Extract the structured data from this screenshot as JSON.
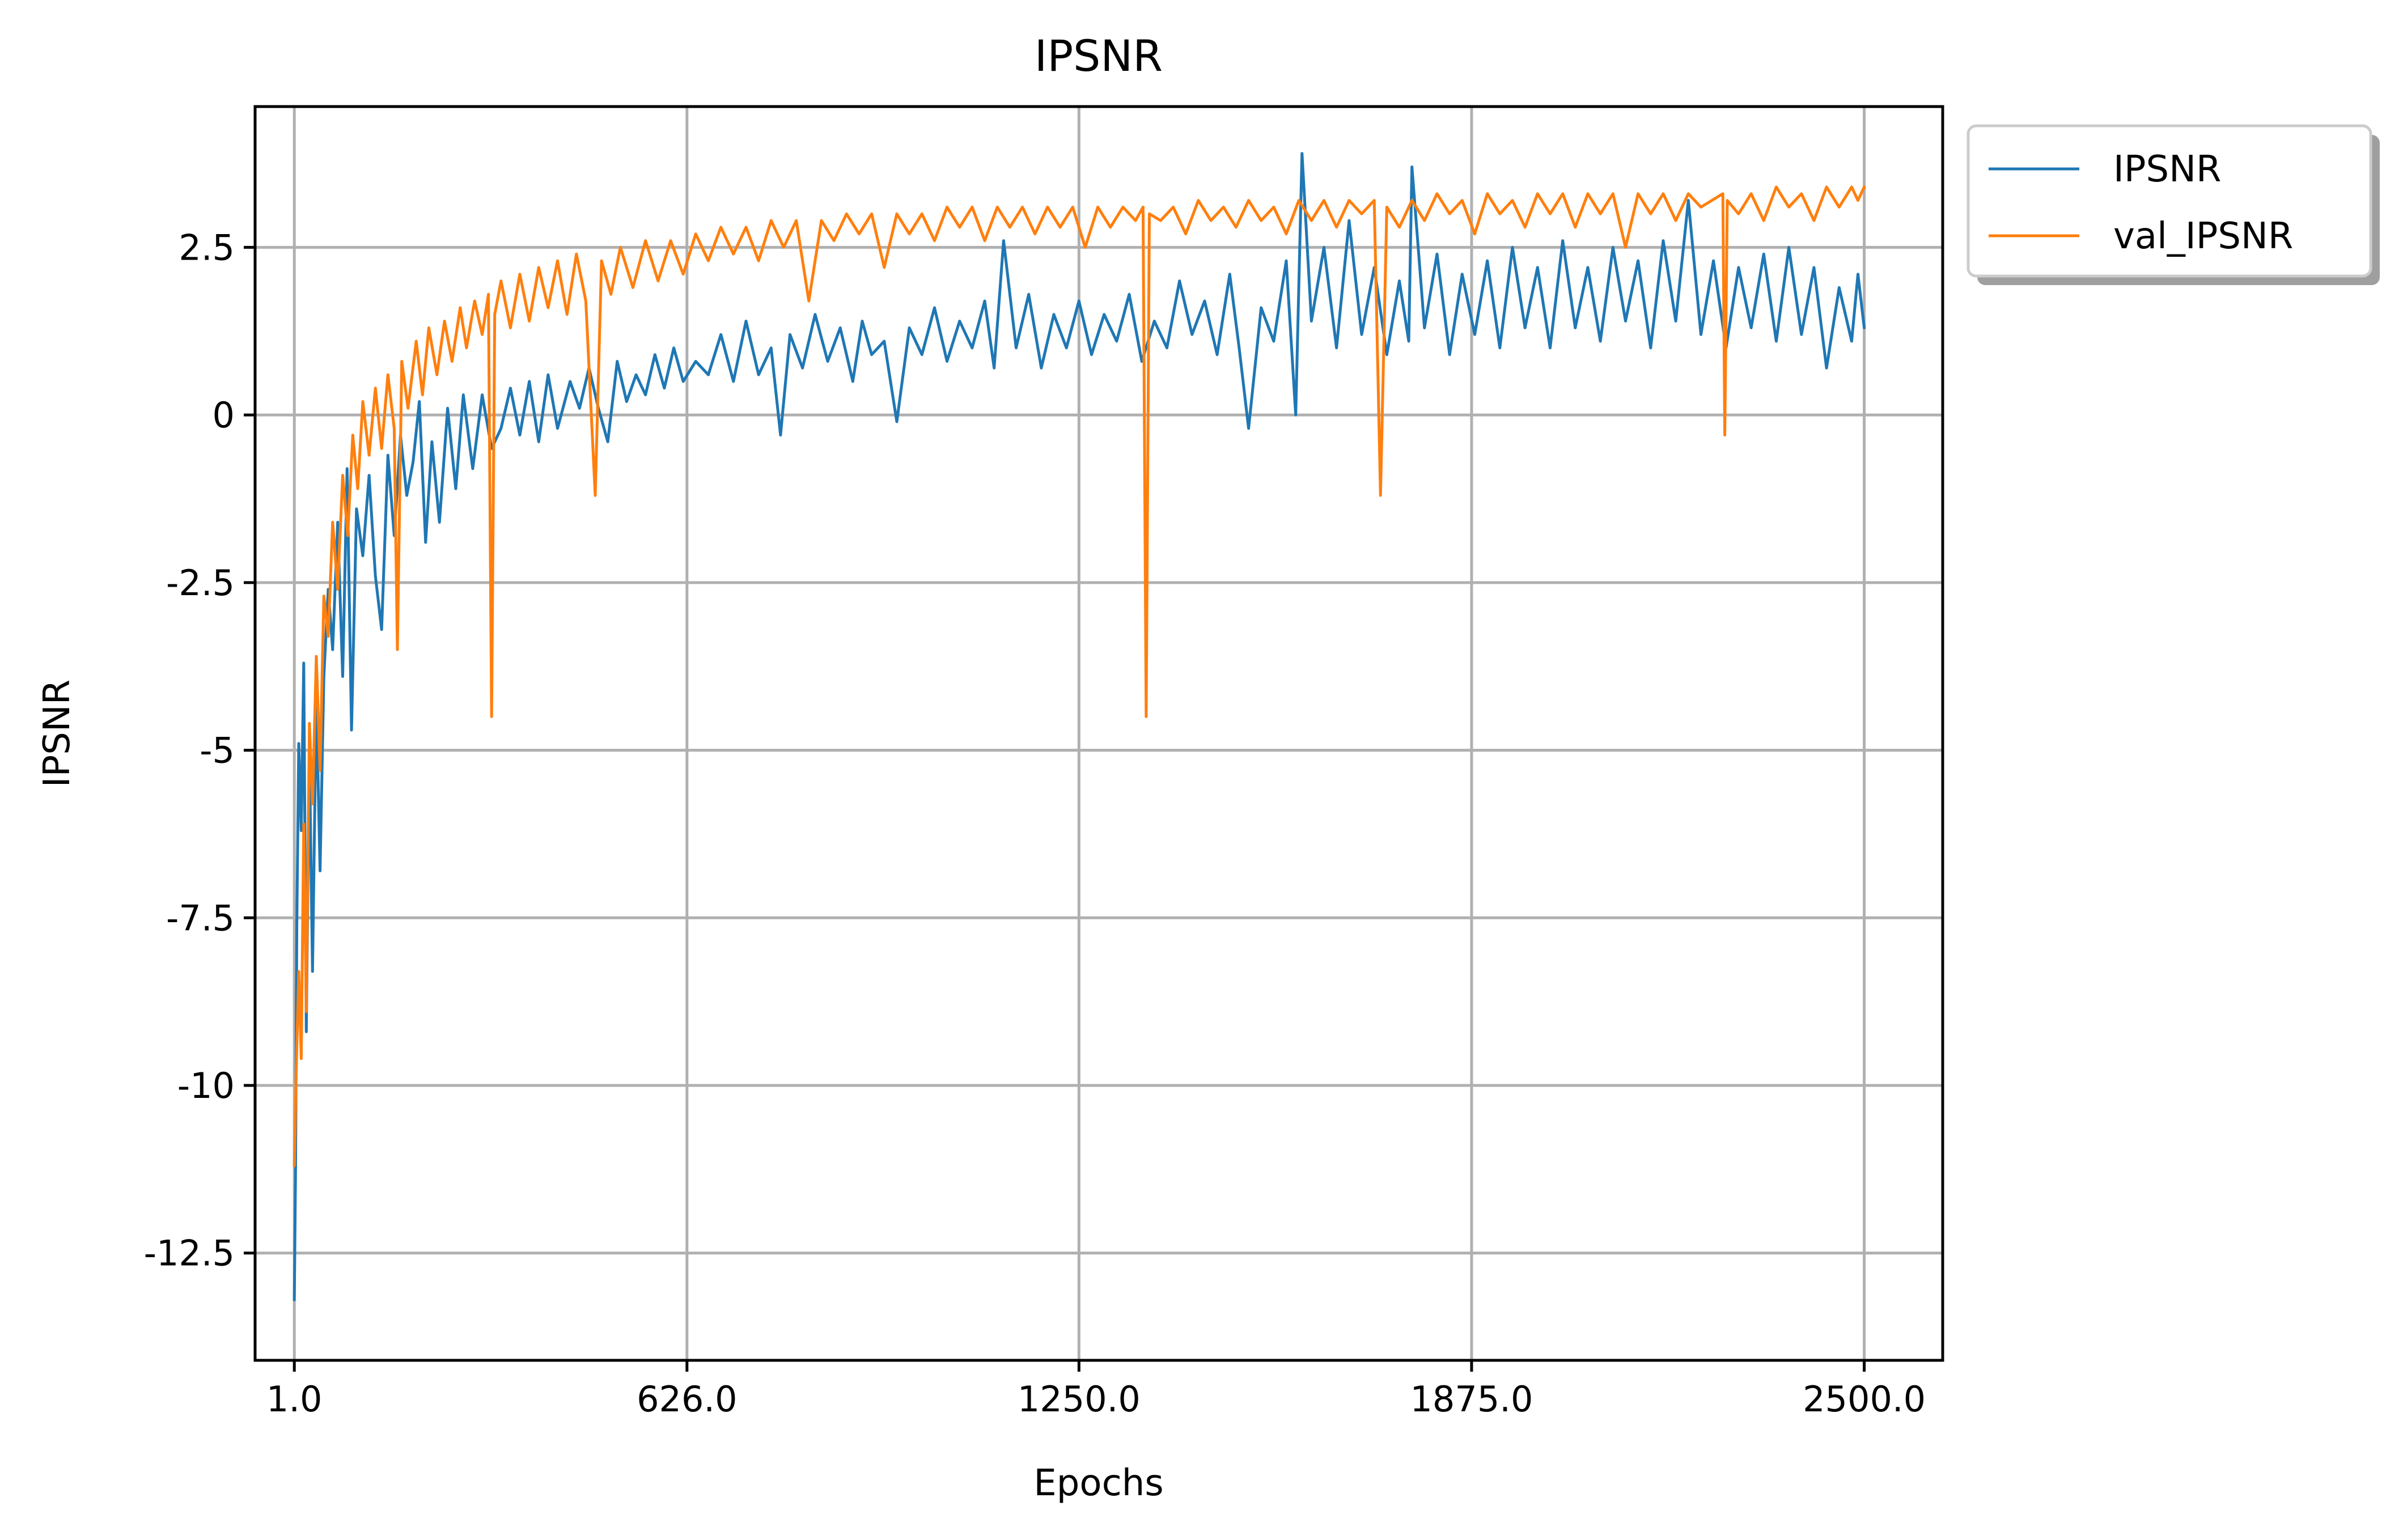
{
  "chart_data": {
    "type": "line",
    "title": "IPSNR",
    "xlabel": "Epochs",
    "ylabel": "IPSNR",
    "xlim": [
      -61.45,
      2624.9
    ],
    "ylim": [
      -14.1,
      4.6
    ],
    "grid": true,
    "legend_position": "outside-top-right",
    "x_ticks": [
      {
        "value": 1,
        "label": "1.0"
      },
      {
        "value": 626,
        "label": "626.0"
      },
      {
        "value": 1250,
        "label": "1250.0"
      },
      {
        "value": 1875,
        "label": "1875.0"
      },
      {
        "value": 2500,
        "label": "2500.0"
      }
    ],
    "y_ticks": [
      {
        "value": 2.5,
        "label": "2.5"
      },
      {
        "value": 0,
        "label": "0"
      },
      {
        "value": -2.5,
        "label": "-2.5"
      },
      {
        "value": -5,
        "label": "-5"
      },
      {
        "value": -7.5,
        "label": "-7.5"
      },
      {
        "value": -10,
        "label": "-10"
      },
      {
        "value": -12.5,
        "label": "-12.5"
      }
    ],
    "series": [
      {
        "name": "IPSNR",
        "color": "#1f77b4",
        "points": [
          [
            1,
            -13.2
          ],
          [
            3,
            -11.2
          ],
          [
            5,
            -7.6
          ],
          [
            8,
            -4.9
          ],
          [
            12,
            -6.2
          ],
          [
            16,
            -3.7
          ],
          [
            20,
            -9.2
          ],
          [
            25,
            -5.0
          ],
          [
            30,
            -8.3
          ],
          [
            36,
            -4.2
          ],
          [
            42,
            -6.8
          ],
          [
            48,
            -3.9
          ],
          [
            55,
            -2.6
          ],
          [
            62,
            -3.5
          ],
          [
            70,
            -1.6
          ],
          [
            78,
            -3.9
          ],
          [
            85,
            -0.8
          ],
          [
            92,
            -4.7
          ],
          [
            100,
            -1.4
          ],
          [
            110,
            -2.1
          ],
          [
            120,
            -0.9
          ],
          [
            130,
            -2.4
          ],
          [
            140,
            -3.2
          ],
          [
            150,
            -0.6
          ],
          [
            160,
            -1.8
          ],
          [
            170,
            -0.3
          ],
          [
            180,
            -1.2
          ],
          [
            190,
            -0.7
          ],
          [
            200,
            0.2
          ],
          [
            210,
            -1.9
          ],
          [
            220,
            -0.4
          ],
          [
            232,
            -1.6
          ],
          [
            245,
            0.1
          ],
          [
            258,
            -1.1
          ],
          [
            270,
            0.3
          ],
          [
            285,
            -0.8
          ],
          [
            300,
            0.3
          ],
          [
            315,
            -0.5
          ],
          [
            330,
            -0.2
          ],
          [
            345,
            0.4
          ],
          [
            360,
            -0.3
          ],
          [
            375,
            0.5
          ],
          [
            390,
            -0.4
          ],
          [
            405,
            0.6
          ],
          [
            420,
            -0.2
          ],
          [
            440,
            0.5
          ],
          [
            455,
            0.1
          ],
          [
            470,
            0.7
          ],
          [
            485,
            0.1
          ],
          [
            500,
            -0.4
          ],
          [
            515,
            0.8
          ],
          [
            530,
            0.2
          ],
          [
            545,
            0.6
          ],
          [
            560,
            0.3
          ],
          [
            575,
            0.9
          ],
          [
            590,
            0.4
          ],
          [
            605,
            1.0
          ],
          [
            620,
            0.5
          ],
          [
            640,
            0.8
          ],
          [
            660,
            0.6
          ],
          [
            680,
            1.2
          ],
          [
            700,
            0.5
          ],
          [
            720,
            1.4
          ],
          [
            740,
            0.6
          ],
          [
            760,
            1.0
          ],
          [
            775,
            -0.3
          ],
          [
            790,
            1.2
          ],
          [
            810,
            0.7
          ],
          [
            830,
            1.5
          ],
          [
            850,
            0.8
          ],
          [
            870,
            1.3
          ],
          [
            890,
            0.5
          ],
          [
            905,
            1.4
          ],
          [
            920,
            0.9
          ],
          [
            940,
            1.1
          ],
          [
            960,
            -0.1
          ],
          [
            980,
            1.3
          ],
          [
            1000,
            0.9
          ],
          [
            1020,
            1.6
          ],
          [
            1040,
            0.8
          ],
          [
            1060,
            1.4
          ],
          [
            1080,
            1.0
          ],
          [
            1100,
            1.7
          ],
          [
            1115,
            0.7
          ],
          [
            1130,
            2.6
          ],
          [
            1150,
            1.0
          ],
          [
            1170,
            1.8
          ],
          [
            1190,
            0.7
          ],
          [
            1210,
            1.5
          ],
          [
            1230,
            1.0
          ],
          [
            1250,
            1.7
          ],
          [
            1270,
            0.9
          ],
          [
            1290,
            1.5
          ],
          [
            1310,
            1.1
          ],
          [
            1330,
            1.8
          ],
          [
            1350,
            0.8
          ],
          [
            1370,
            1.4
          ],
          [
            1390,
            1.0
          ],
          [
            1410,
            2.0
          ],
          [
            1430,
            1.2
          ],
          [
            1450,
            1.7
          ],
          [
            1470,
            0.9
          ],
          [
            1490,
            2.1
          ],
          [
            1505,
            1.0
          ],
          [
            1520,
            -0.2
          ],
          [
            1540,
            1.6
          ],
          [
            1560,
            1.1
          ],
          [
            1580,
            2.3
          ],
          [
            1595,
            0.0
          ],
          [
            1605,
            3.9
          ],
          [
            1620,
            1.4
          ],
          [
            1640,
            2.5
          ],
          [
            1660,
            1.0
          ],
          [
            1680,
            2.9
          ],
          [
            1700,
            1.2
          ],
          [
            1720,
            2.2
          ],
          [
            1740,
            0.9
          ],
          [
            1760,
            2.0
          ],
          [
            1775,
            1.1
          ],
          [
            1780,
            3.7
          ],
          [
            1800,
            1.3
          ],
          [
            1820,
            2.4
          ],
          [
            1840,
            0.9
          ],
          [
            1860,
            2.1
          ],
          [
            1880,
            1.2
          ],
          [
            1900,
            2.3
          ],
          [
            1920,
            1.0
          ],
          [
            1940,
            2.5
          ],
          [
            1960,
            1.3
          ],
          [
            1980,
            2.2
          ],
          [
            2000,
            1.0
          ],
          [
            2020,
            2.6
          ],
          [
            2040,
            1.3
          ],
          [
            2060,
            2.2
          ],
          [
            2080,
            1.1
          ],
          [
            2100,
            2.5
          ],
          [
            2120,
            1.4
          ],
          [
            2140,
            2.3
          ],
          [
            2160,
            1.0
          ],
          [
            2180,
            2.6
          ],
          [
            2200,
            1.4
          ],
          [
            2220,
            3.2
          ],
          [
            2240,
            1.2
          ],
          [
            2260,
            2.3
          ],
          [
            2280,
            1.0
          ],
          [
            2300,
            2.2
          ],
          [
            2320,
            1.3
          ],
          [
            2340,
            2.4
          ],
          [
            2360,
            1.1
          ],
          [
            2380,
            2.5
          ],
          [
            2400,
            1.2
          ],
          [
            2420,
            2.2
          ],
          [
            2440,
            0.7
          ],
          [
            2460,
            1.9
          ],
          [
            2480,
            1.1
          ],
          [
            2490,
            2.1
          ],
          [
            2500,
            1.3
          ]
        ]
      },
      {
        "name": "val_IPSNR",
        "color": "#ff7f0e",
        "points": [
          [
            1,
            -11.2
          ],
          [
            4,
            -9.8
          ],
          [
            8,
            -8.3
          ],
          [
            12,
            -9.6
          ],
          [
            16,
            -6.1
          ],
          [
            20,
            -8.9
          ],
          [
            25,
            -4.6
          ],
          [
            30,
            -5.8
          ],
          [
            36,
            -3.6
          ],
          [
            42,
            -5.3
          ],
          [
            48,
            -2.7
          ],
          [
            55,
            -3.3
          ],
          [
            62,
            -1.6
          ],
          [
            70,
            -2.6
          ],
          [
            78,
            -0.9
          ],
          [
            86,
            -1.8
          ],
          [
            94,
            -0.3
          ],
          [
            102,
            -1.1
          ],
          [
            110,
            0.2
          ],
          [
            120,
            -0.6
          ],
          [
            130,
            0.4
          ],
          [
            140,
            -0.5
          ],
          [
            150,
            0.6
          ],
          [
            160,
            -0.2
          ],
          [
            165,
            -3.5
          ],
          [
            172,
            0.8
          ],
          [
            182,
            0.1
          ],
          [
            195,
            1.1
          ],
          [
            205,
            0.3
          ],
          [
            215,
            1.3
          ],
          [
            228,
            0.6
          ],
          [
            240,
            1.4
          ],
          [
            252,
            0.8
          ],
          [
            265,
            1.6
          ],
          [
            275,
            1.0
          ],
          [
            288,
            1.7
          ],
          [
            300,
            1.2
          ],
          [
            310,
            1.8
          ],
          [
            315,
            -4.5
          ],
          [
            320,
            1.5
          ],
          [
            330,
            2.0
          ],
          [
            345,
            1.3
          ],
          [
            360,
            2.1
          ],
          [
            375,
            1.4
          ],
          [
            390,
            2.2
          ],
          [
            405,
            1.6
          ],
          [
            420,
            2.3
          ],
          [
            435,
            1.5
          ],
          [
            450,
            2.4
          ],
          [
            465,
            1.7
          ],
          [
            480,
            -1.2
          ],
          [
            490,
            2.3
          ],
          [
            505,
            1.8
          ],
          [
            520,
            2.5
          ],
          [
            540,
            1.9
          ],
          [
            560,
            2.6
          ],
          [
            580,
            2.0
          ],
          [
            600,
            2.6
          ],
          [
            620,
            2.1
          ],
          [
            640,
            2.7
          ],
          [
            660,
            2.3
          ],
          [
            680,
            2.8
          ],
          [
            700,
            2.4
          ],
          [
            720,
            2.8
          ],
          [
            740,
            2.3
          ],
          [
            760,
            2.9
          ],
          [
            780,
            2.5
          ],
          [
            800,
            2.9
          ],
          [
            820,
            1.7
          ],
          [
            840,
            2.9
          ],
          [
            860,
            2.6
          ],
          [
            880,
            3.0
          ],
          [
            900,
            2.7
          ],
          [
            920,
            3.0
          ],
          [
            940,
            2.2
          ],
          [
            960,
            3.0
          ],
          [
            980,
            2.7
          ],
          [
            1000,
            3.0
          ],
          [
            1020,
            2.6
          ],
          [
            1040,
            3.1
          ],
          [
            1060,
            2.8
          ],
          [
            1080,
            3.1
          ],
          [
            1100,
            2.6
          ],
          [
            1120,
            3.1
          ],
          [
            1140,
            2.8
          ],
          [
            1160,
            3.1
          ],
          [
            1180,
            2.7
          ],
          [
            1200,
            3.1
          ],
          [
            1220,
            2.8
          ],
          [
            1240,
            3.1
          ],
          [
            1260,
            2.5
          ],
          [
            1280,
            3.1
          ],
          [
            1300,
            2.8
          ],
          [
            1320,
            3.1
          ],
          [
            1340,
            2.9
          ],
          [
            1352,
            3.1
          ],
          [
            1357,
            -4.5
          ],
          [
            1362,
            3.0
          ],
          [
            1380,
            2.9
          ],
          [
            1400,
            3.1
          ],
          [
            1420,
            2.7
          ],
          [
            1440,
            3.2
          ],
          [
            1460,
            2.9
          ],
          [
            1480,
            3.1
          ],
          [
            1500,
            2.8
          ],
          [
            1520,
            3.2
          ],
          [
            1540,
            2.9
          ],
          [
            1560,
            3.1
          ],
          [
            1580,
            2.7
          ],
          [
            1600,
            3.2
          ],
          [
            1620,
            2.9
          ],
          [
            1640,
            3.2
          ],
          [
            1660,
            2.8
          ],
          [
            1680,
            3.2
          ],
          [
            1700,
            3.0
          ],
          [
            1720,
            3.2
          ],
          [
            1730,
            -1.2
          ],
          [
            1740,
            3.1
          ],
          [
            1760,
            2.8
          ],
          [
            1780,
            3.2
          ],
          [
            1800,
            2.9
          ],
          [
            1820,
            3.3
          ],
          [
            1840,
            3.0
          ],
          [
            1860,
            3.2
          ],
          [
            1880,
            2.7
          ],
          [
            1900,
            3.3
          ],
          [
            1920,
            3.0
          ],
          [
            1940,
            3.2
          ],
          [
            1960,
            2.8
          ],
          [
            1980,
            3.3
          ],
          [
            2000,
            3.0
          ],
          [
            2020,
            3.3
          ],
          [
            2040,
            2.8
          ],
          [
            2060,
            3.3
          ],
          [
            2080,
            3.0
          ],
          [
            2100,
            3.3
          ],
          [
            2120,
            2.5
          ],
          [
            2140,
            3.3
          ],
          [
            2160,
            3.0
          ],
          [
            2180,
            3.3
          ],
          [
            2200,
            2.9
          ],
          [
            2220,
            3.3
          ],
          [
            2240,
            3.1
          ],
          [
            2275,
            3.3
          ],
          [
            2278,
            -0.3
          ],
          [
            2282,
            3.2
          ],
          [
            2300,
            3.0
          ],
          [
            2320,
            3.3
          ],
          [
            2340,
            2.9
          ],
          [
            2360,
            3.4
          ],
          [
            2380,
            3.1
          ],
          [
            2400,
            3.3
          ],
          [
            2420,
            2.9
          ],
          [
            2440,
            3.4
          ],
          [
            2460,
            3.1
          ],
          [
            2480,
            3.4
          ],
          [
            2490,
            3.2
          ],
          [
            2500,
            3.4
          ]
        ]
      }
    ]
  }
}
